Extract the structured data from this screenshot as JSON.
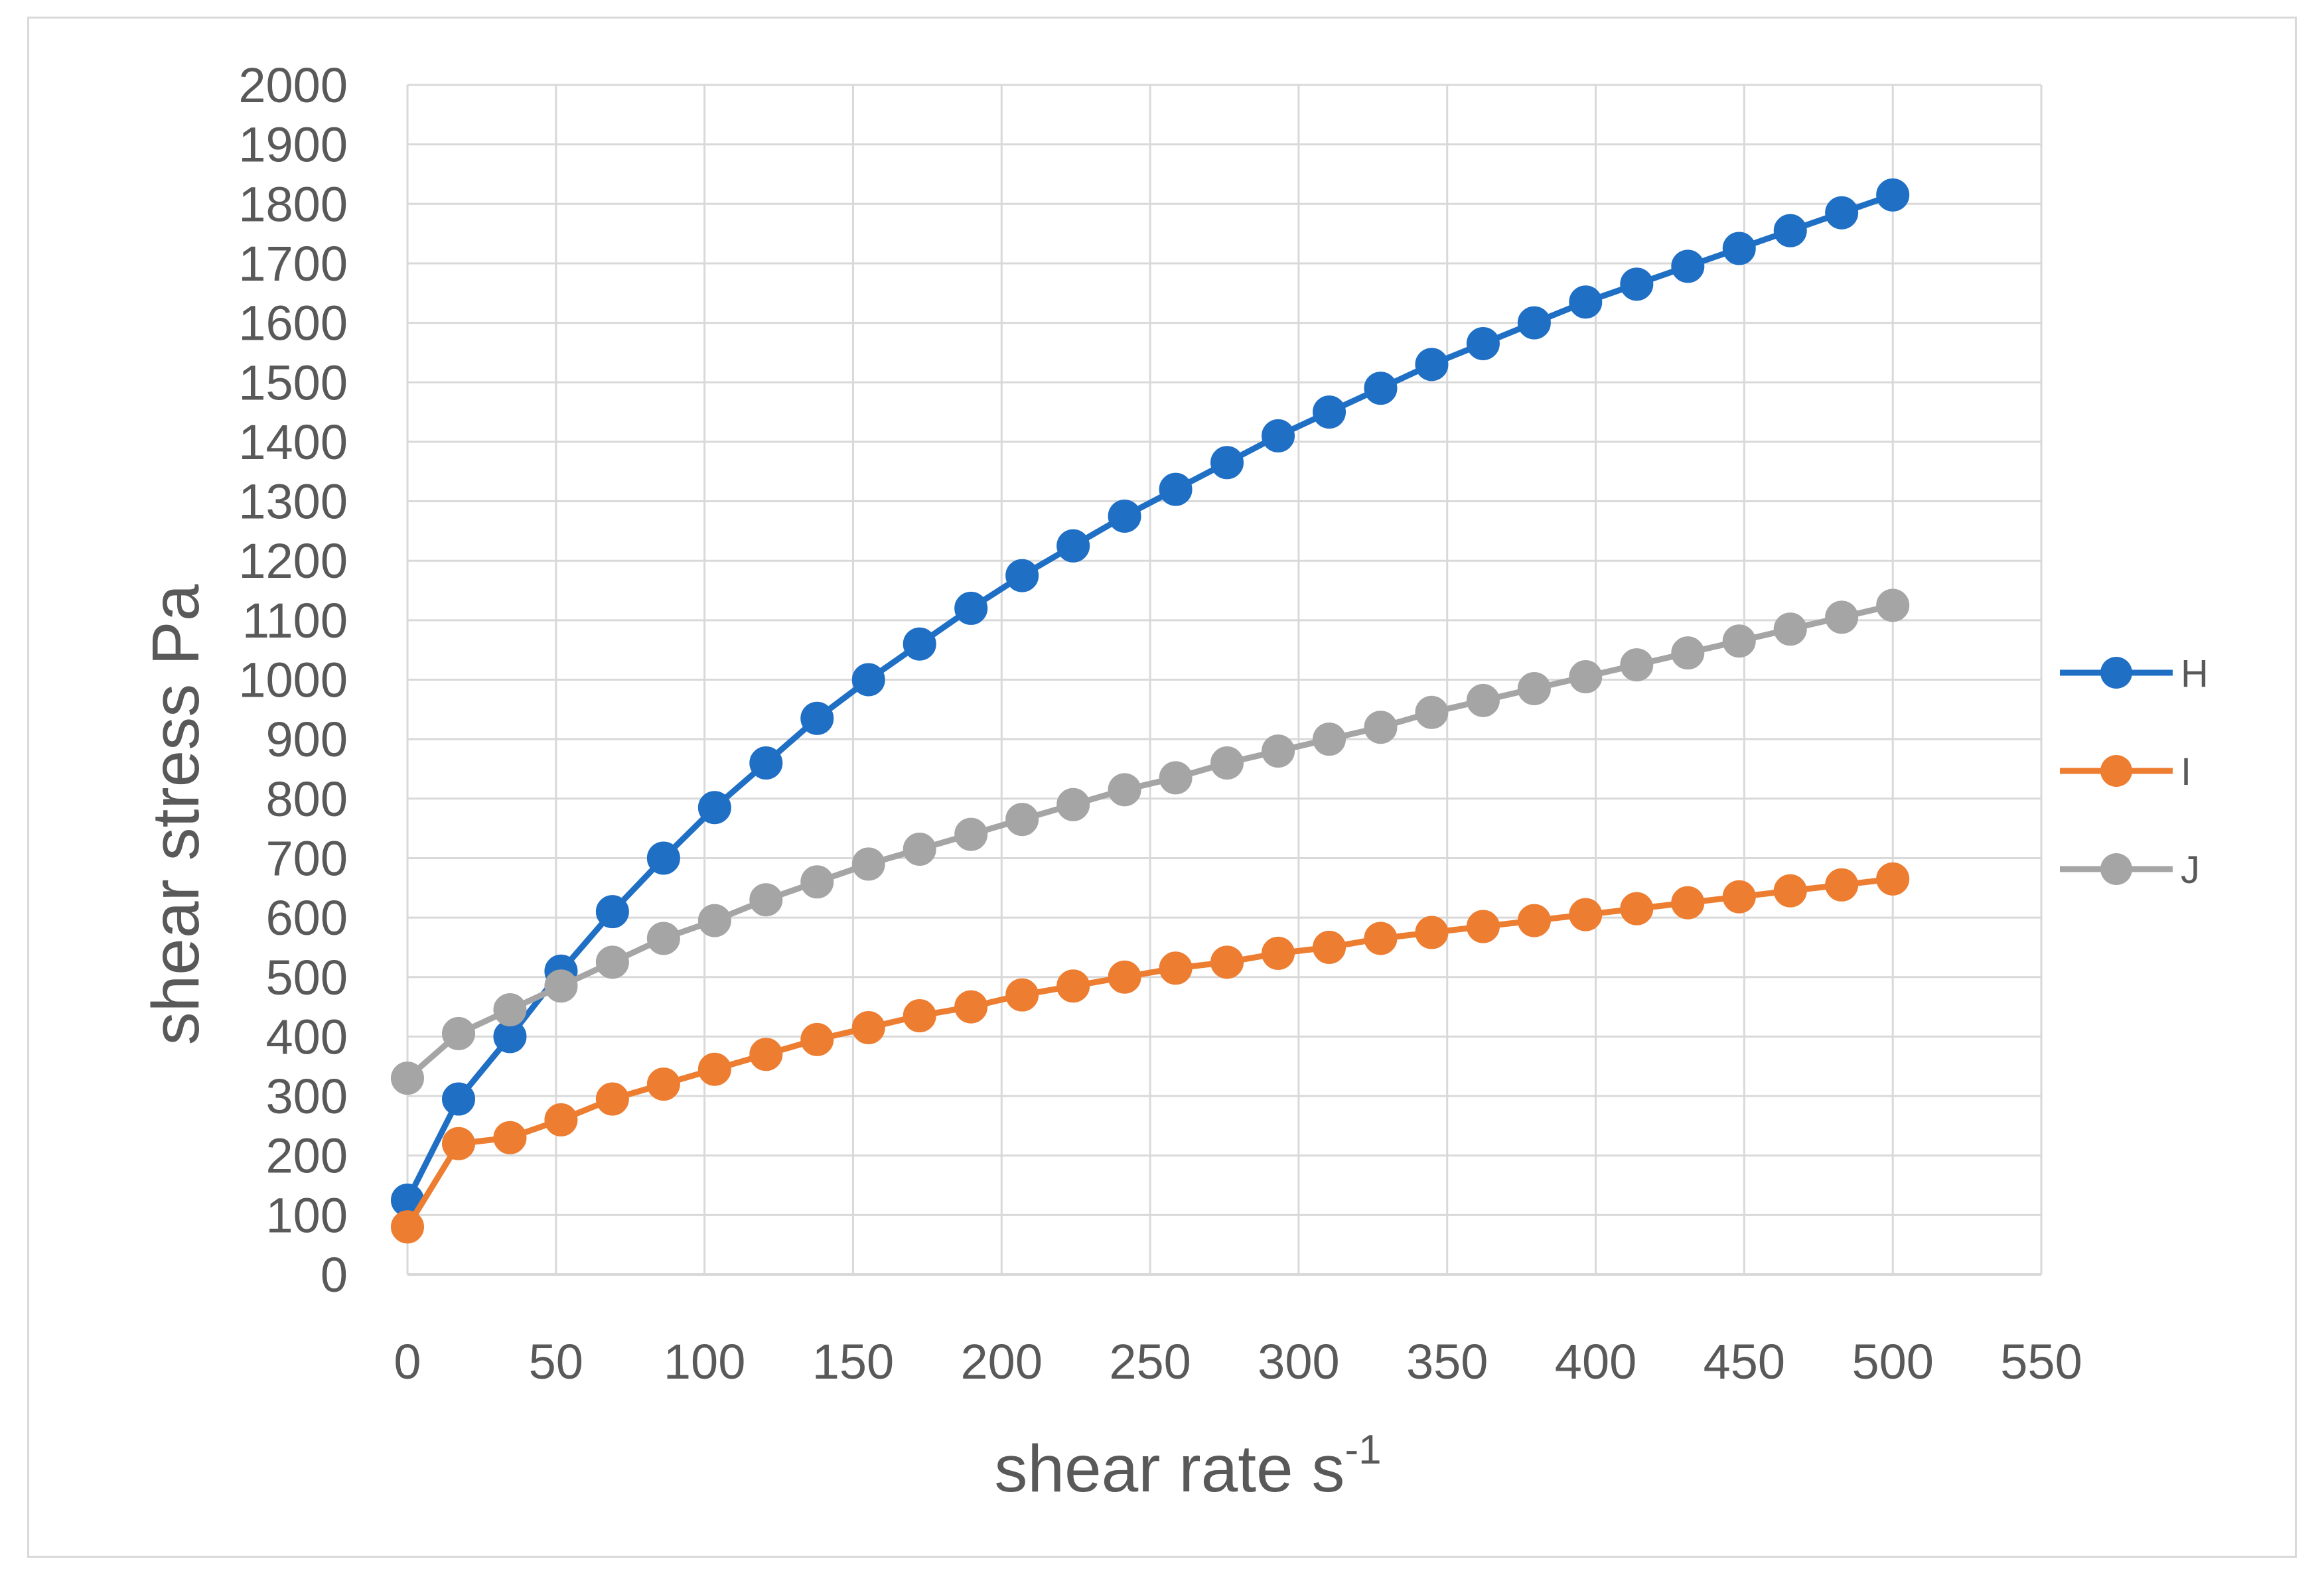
{
  "chart_data": {
    "type": "line",
    "title": "",
    "xlabel": "shear rate s",
    "xlabel_superscript": "-1",
    "ylabel": "shear stress Pa",
    "xlim": [
      0,
      550
    ],
    "ylim": [
      0,
      2000
    ],
    "x_ticks": [
      0,
      50,
      100,
      150,
      200,
      250,
      300,
      350,
      400,
      450,
      500,
      550
    ],
    "y_ticks": [
      0,
      100,
      200,
      300,
      400,
      500,
      600,
      700,
      800,
      900,
      1000,
      1100,
      1200,
      1300,
      1400,
      1500,
      1600,
      1700,
      1800,
      1900,
      2000
    ],
    "grid": true,
    "legend_position": "right",
    "x": [
      0,
      17.2,
      34.5,
      51.7,
      69,
      86.2,
      103.4,
      120.7,
      137.9,
      155.2,
      172.4,
      189.7,
      206.9,
      224.1,
      241.4,
      258.6,
      275.9,
      293.1,
      310.3,
      327.6,
      344.8,
      362.1,
      379.3,
      396.6,
      413.8,
      431,
      448.3,
      465.5,
      482.8,
      500
    ],
    "series": [
      {
        "name": "H",
        "color": "#1f6fc5",
        "values": [
          125,
          295,
          400,
          510,
          610,
          700,
          785,
          860,
          935,
          1000,
          1060,
          1120,
          1175,
          1225,
          1275,
          1320,
          1365,
          1410,
          1450,
          1490,
          1530,
          1565,
          1600,
          1635,
          1665,
          1695,
          1725,
          1755,
          1785,
          1815
        ]
      },
      {
        "name": "I",
        "color": "#ed7d31",
        "values": [
          80,
          220,
          230,
          260,
          295,
          320,
          345,
          370,
          395,
          415,
          435,
          450,
          470,
          485,
          500,
          515,
          525,
          540,
          550,
          565,
          575,
          585,
          595,
          605,
          615,
          625,
          635,
          645,
          655,
          665
        ]
      },
      {
        "name": "J",
        "color": "#a5a5a5",
        "values": [
          330,
          405,
          445,
          485,
          525,
          565,
          595,
          630,
          660,
          690,
          715,
          740,
          765,
          790,
          815,
          835,
          860,
          880,
          900,
          920,
          945,
          965,
          985,
          1005,
          1025,
          1045,
          1065,
          1085,
          1105,
          1125
        ]
      }
    ]
  }
}
